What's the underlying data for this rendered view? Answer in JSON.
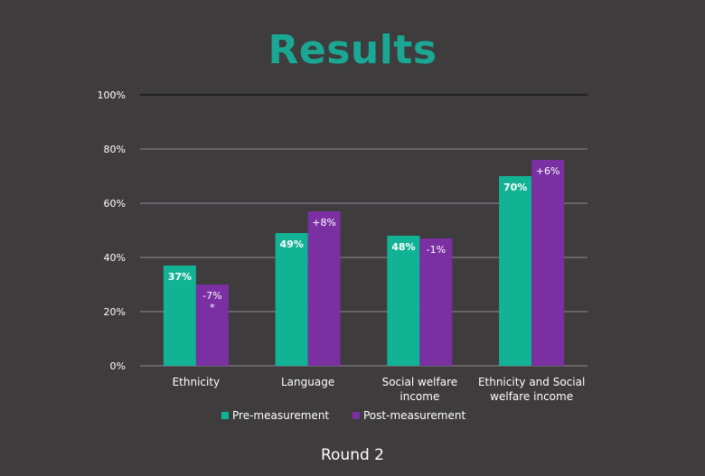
{
  "title": "Results",
  "caption": "Round 2",
  "chart_data": {
    "type": "bar",
    "categories": [
      [
        "Ethnicity"
      ],
      [
        "Language"
      ],
      [
        "Social welfare",
        "income"
      ],
      [
        "Ethnicity and Social",
        "welfare income"
      ]
    ],
    "series": [
      {
        "name": "Pre-measurement",
        "color": "#12b394",
        "values": [
          37,
          49,
          48,
          70
        ],
        "labels": [
          [
            "37%"
          ],
          [
            "49%"
          ],
          [
            "48%"
          ],
          [
            "70%"
          ]
        ]
      },
      {
        "name": "Post-measurement",
        "color": "#7a2fa3",
        "values": [
          30,
          57,
          47,
          76
        ],
        "labels": [
          [
            "-7%",
            "*"
          ],
          [
            "+8%"
          ],
          [
            "-1%"
          ],
          [
            "+6%"
          ]
        ]
      }
    ],
    "ylim": [
      0,
      100
    ],
    "yticks": [
      "0%",
      "20%",
      "40%",
      "60%",
      "80%",
      "100%"
    ],
    "grid": true,
    "legend": "bottom"
  }
}
